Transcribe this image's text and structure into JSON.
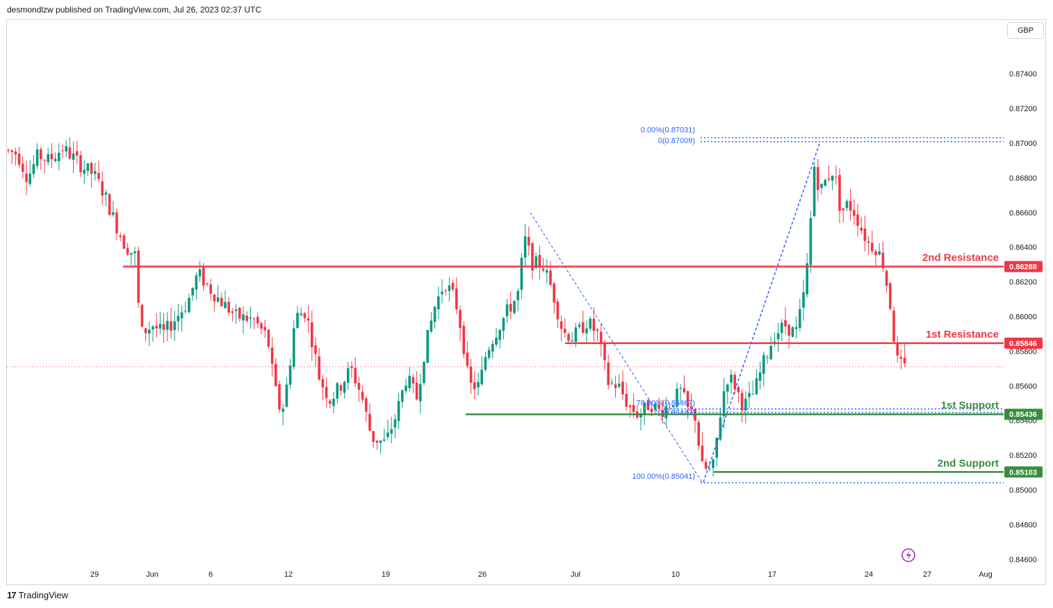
{
  "header": {
    "publisher": "desmondlzw published on TradingView.com, Jul 26, 2023 02:37 UTC"
  },
  "footer": {
    "brand": "TradingView",
    "logo_glyph": "17"
  },
  "currency": "GBP",
  "colors": {
    "up": "#089981",
    "down": "#f23645",
    "resistance": "#f23645",
    "support": "#388e3c",
    "fib": "#2962ff"
  },
  "chart_data": {
    "type": "candlestick",
    "currency": "GBP",
    "y_ticks": [
      "0.84600",
      "0.84800",
      "0.85000",
      "0.85200",
      "0.85400",
      "0.85600",
      "0.85800",
      "0.86000",
      "0.86200",
      "0.86400",
      "0.86600",
      "0.86800",
      "0.87000",
      "0.87200",
      "0.87400"
    ],
    "x_ticks": [
      "29",
      "Jun",
      "6",
      "12",
      "19",
      "26",
      "Jul",
      "10",
      "17",
      "24",
      "27",
      "Aug"
    ],
    "ylim": [
      0.8456,
      0.8758
    ],
    "levels": [
      {
        "name": "2nd Resistance",
        "value": 0.86288,
        "label": "0.86288",
        "kind": "resistance"
      },
      {
        "name": "1st Resistance",
        "value": 0.85846,
        "label": "0.85846",
        "kind": "resistance"
      },
      {
        "name": "1st Support",
        "value": 0.85436,
        "label": "0.85436",
        "kind": "support"
      },
      {
        "name": "2nd Support",
        "value": 0.85103,
        "label": "0.85103",
        "kind": "support"
      }
    ],
    "fib_labels": [
      "0.00%(0.87031)",
      "0(0.87009)",
      "78.60%(0.85467)",
      "0(0.85447)",
      "100.00%(0.85041)"
    ],
    "fib_values": [
      0.87031,
      0.87009,
      0.85467,
      0.85447,
      0.85041
    ],
    "candles": []
  }
}
